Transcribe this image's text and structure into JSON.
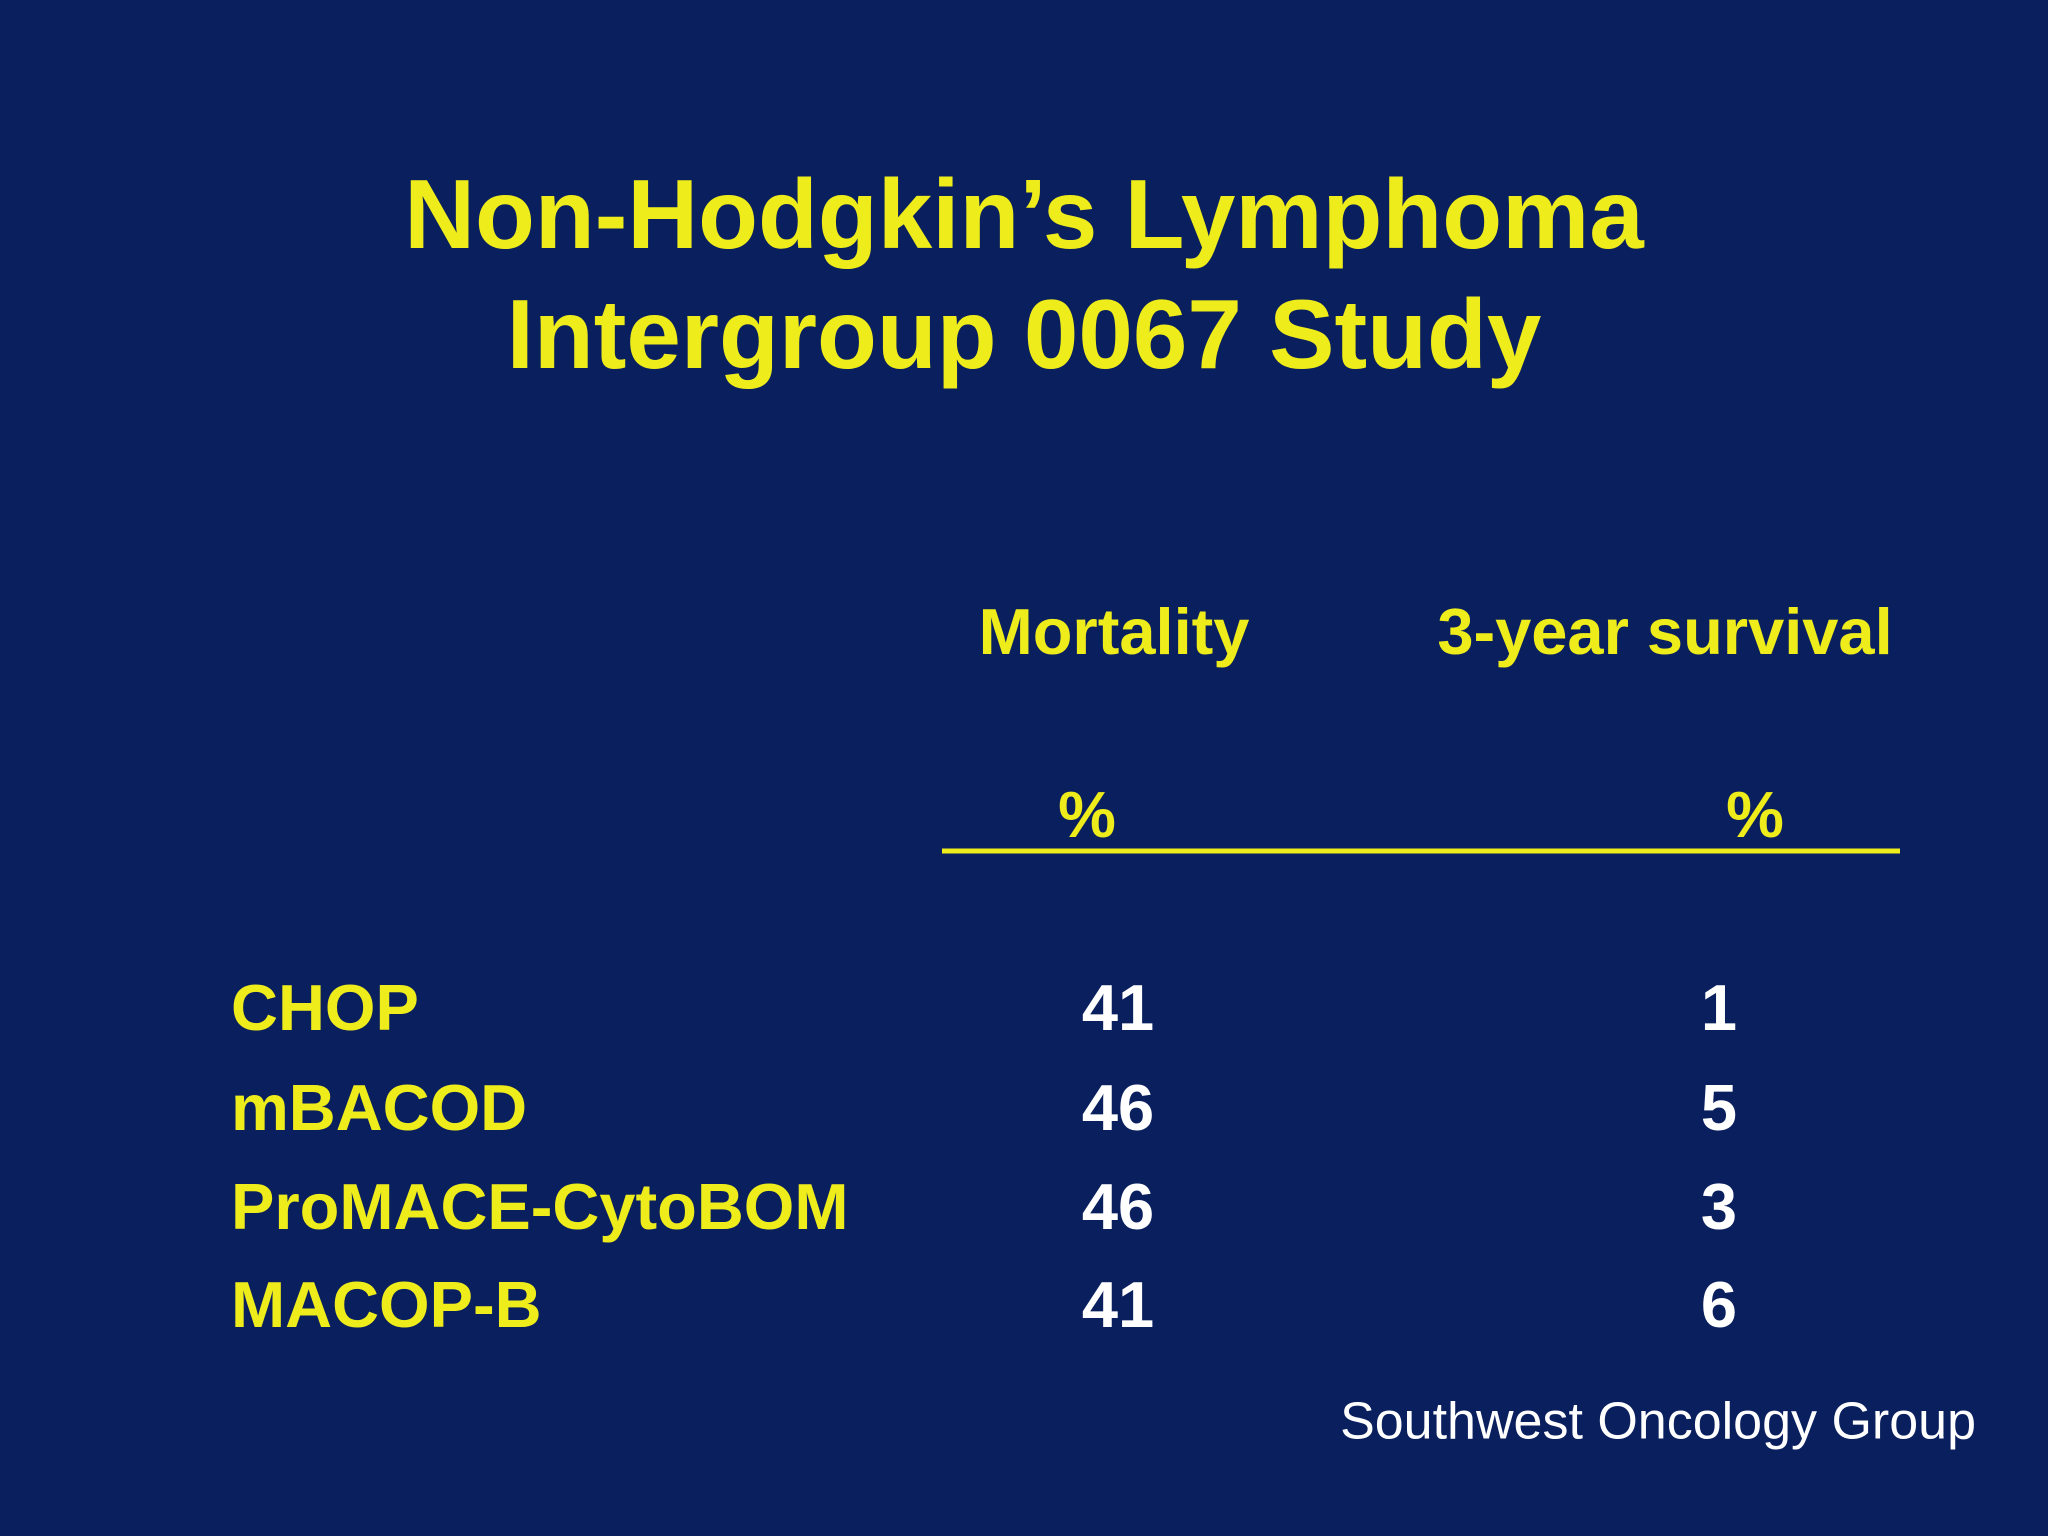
{
  "title": {
    "lines": [
      "Non-Hodgkin’s Lymphoma",
      "Intergroup 0067 Study"
    ]
  },
  "table": {
    "columns": [
      {
        "name": "Mortality",
        "unit": "%"
      },
      {
        "name": "3-year survival",
        "unit": "%"
      }
    ],
    "rows": [
      {
        "name": "CHOP",
        "values": [
          41,
          1
        ]
      },
      {
        "name": "mBACOD",
        "values": [
          46,
          5
        ]
      },
      {
        "name": "ProMACE-CytoBOM",
        "values": [
          46,
          3
        ]
      },
      {
        "name": "MACOP-B",
        "values": [
          41,
          6
        ]
      }
    ]
  },
  "footer": "Southwest Oncology Group"
}
